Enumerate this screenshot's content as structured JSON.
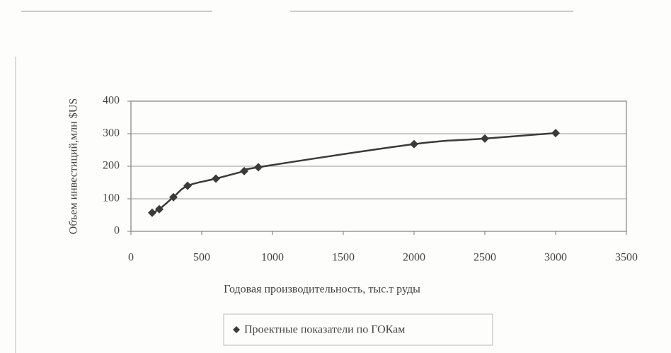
{
  "chart_data": {
    "type": "scatter",
    "x_label": "Годовая производительность, тыс.т руды",
    "y_label": "Объем инвестиций,млн $US",
    "x": [
      150,
      200,
      300,
      400,
      600,
      800,
      900,
      2000,
      2500,
      3000
    ],
    "series": [
      {
        "name": "Проектные показатели по ГОКам",
        "color": "#3a3a3a",
        "values": [
          57,
          68,
          105,
          140,
          162,
          185,
          197,
          268,
          285,
          302
        ]
      }
    ],
    "xlim": [
      0,
      3500
    ],
    "xticks": [
      0,
      500,
      1000,
      1500,
      2000,
      2500,
      3000,
      3500
    ],
    "ylim": [
      0,
      400
    ],
    "yticks": [
      0,
      100,
      200,
      300,
      400
    ],
    "grid": true,
    "legend": "bottom"
  }
}
